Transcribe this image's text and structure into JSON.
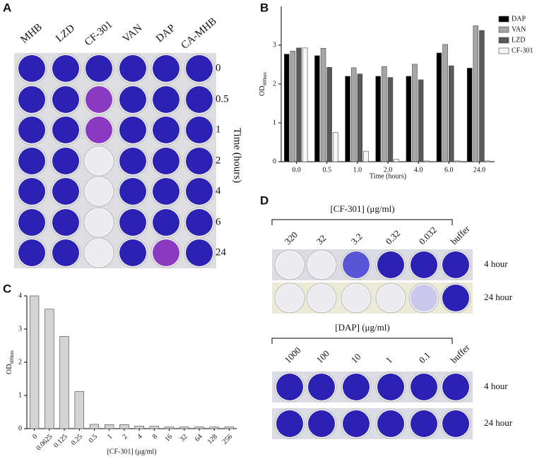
{
  "panel_a": {
    "letter": "A",
    "columns": [
      "MHB",
      "LZD",
      "CF-301",
      "VAN",
      "DAP",
      "CA-MHB"
    ],
    "rows": [
      "0",
      "0.5",
      "1",
      "2",
      "4",
      "6",
      "24"
    ],
    "axis_label": "Time (hours)"
  },
  "chart_data": [
    {
      "type": "bar",
      "panel": "B",
      "x_label": "Time (hours)",
      "y_label": "OD",
      "y_label_sub": "600nm",
      "categories": [
        "0.0",
        "0.5",
        "1.0",
        "2.0",
        "4.0",
        "6.0",
        "24.0"
      ],
      "series": [
        {
          "name": "DAP",
          "color": "#000000",
          "values": [
            2.77,
            2.73,
            2.2,
            2.2,
            2.2,
            2.8,
            2.41
          ]
        },
        {
          "name": "VAN",
          "color": "#a6a6a6",
          "values": [
            2.85,
            2.92,
            2.42,
            2.45,
            2.51,
            3.02,
            3.5
          ]
        },
        {
          "name": "LZD",
          "color": "#595959",
          "values": [
            2.93,
            2.43,
            2.26,
            2.17,
            2.11,
            2.47,
            3.38
          ]
        },
        {
          "name": "CF-301",
          "color": "#f7f7f7",
          "values": [
            2.93,
            0.75,
            0.27,
            0.06,
            0.02,
            0.02,
            0.02
          ]
        }
      ],
      "ylim": [
        0,
        4
      ],
      "yticks": [
        0,
        1,
        2,
        3
      ]
    },
    {
      "type": "bar",
      "panel": "C",
      "x_label": "[CF-301] (μg/ml)",
      "y_label": "OD",
      "y_label_sub": "600nm",
      "categories": [
        "0",
        "0.0625",
        "0.125",
        "0.25",
        "0.5",
        "1",
        "2",
        "4",
        "8",
        "16",
        "32",
        "64",
        "128",
        "256"
      ],
      "values": [
        4.0,
        3.6,
        2.78,
        1.12,
        0.13,
        0.12,
        0.12,
        0.08,
        0.07,
        0.05,
        0.05,
        0.05,
        0.05,
        0.05
      ],
      "color": "#d4d4d4",
      "ylim": [
        0,
        4
      ],
      "yticks": [
        0,
        1,
        2,
        3,
        4
      ]
    }
  ],
  "panel_d": {
    "letter": "D",
    "groups": [
      {
        "title": "[CF-301] (μg/ml)",
        "concentrations": [
          "320",
          "32",
          "3.2",
          "0.32",
          "0.032",
          "buffer"
        ],
        "rows": [
          "4 hour",
          "24 hour"
        ]
      },
      {
        "title": "[DAP] (μg/ml)",
        "concentrations": [
          "1000",
          "100",
          "10",
          "1",
          "0.1",
          "buffer"
        ],
        "rows": [
          "4 hour",
          "24 hour"
        ]
      }
    ]
  }
}
